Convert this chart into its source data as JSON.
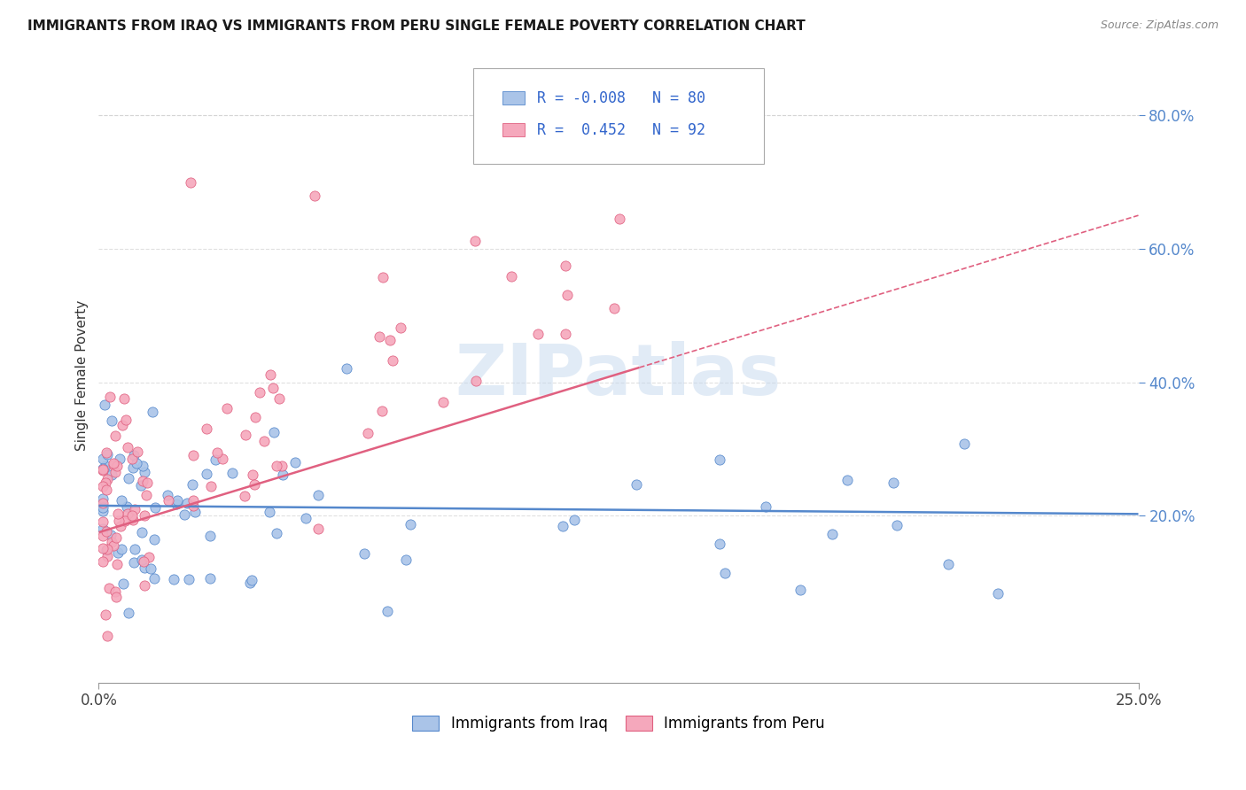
{
  "title": "IMMIGRANTS FROM IRAQ VS IMMIGRANTS FROM PERU SINGLE FEMALE POVERTY CORRELATION CHART",
  "source": "Source: ZipAtlas.com",
  "ylabel": "Single Female Poverty",
  "watermark": "ZIPatlas",
  "legend_iraq": "Immigrants from Iraq",
  "legend_peru": "Immigrants from Peru",
  "R_iraq": -0.008,
  "N_iraq": 80,
  "R_peru": 0.452,
  "N_peru": 92,
  "xlim": [
    0.0,
    0.25
  ],
  "ylim": [
    -0.05,
    0.87
  ],
  "ytick_positions": [
    0.2,
    0.4,
    0.6,
    0.8
  ],
  "ytick_labels": [
    "20.0%",
    "40.0%",
    "60.0%",
    "80.0%"
  ],
  "color_iraq": "#aac4e8",
  "color_peru": "#f5a8bc",
  "color_iraq_line": "#5588cc",
  "color_peru_line": "#e06080",
  "grid_color": "#cccccc",
  "seed": 12345,
  "iraq_line_y0": 0.215,
  "iraq_line_y1": 0.208,
  "peru_line_y0": 0.175,
  "peru_line_y1": 0.65
}
